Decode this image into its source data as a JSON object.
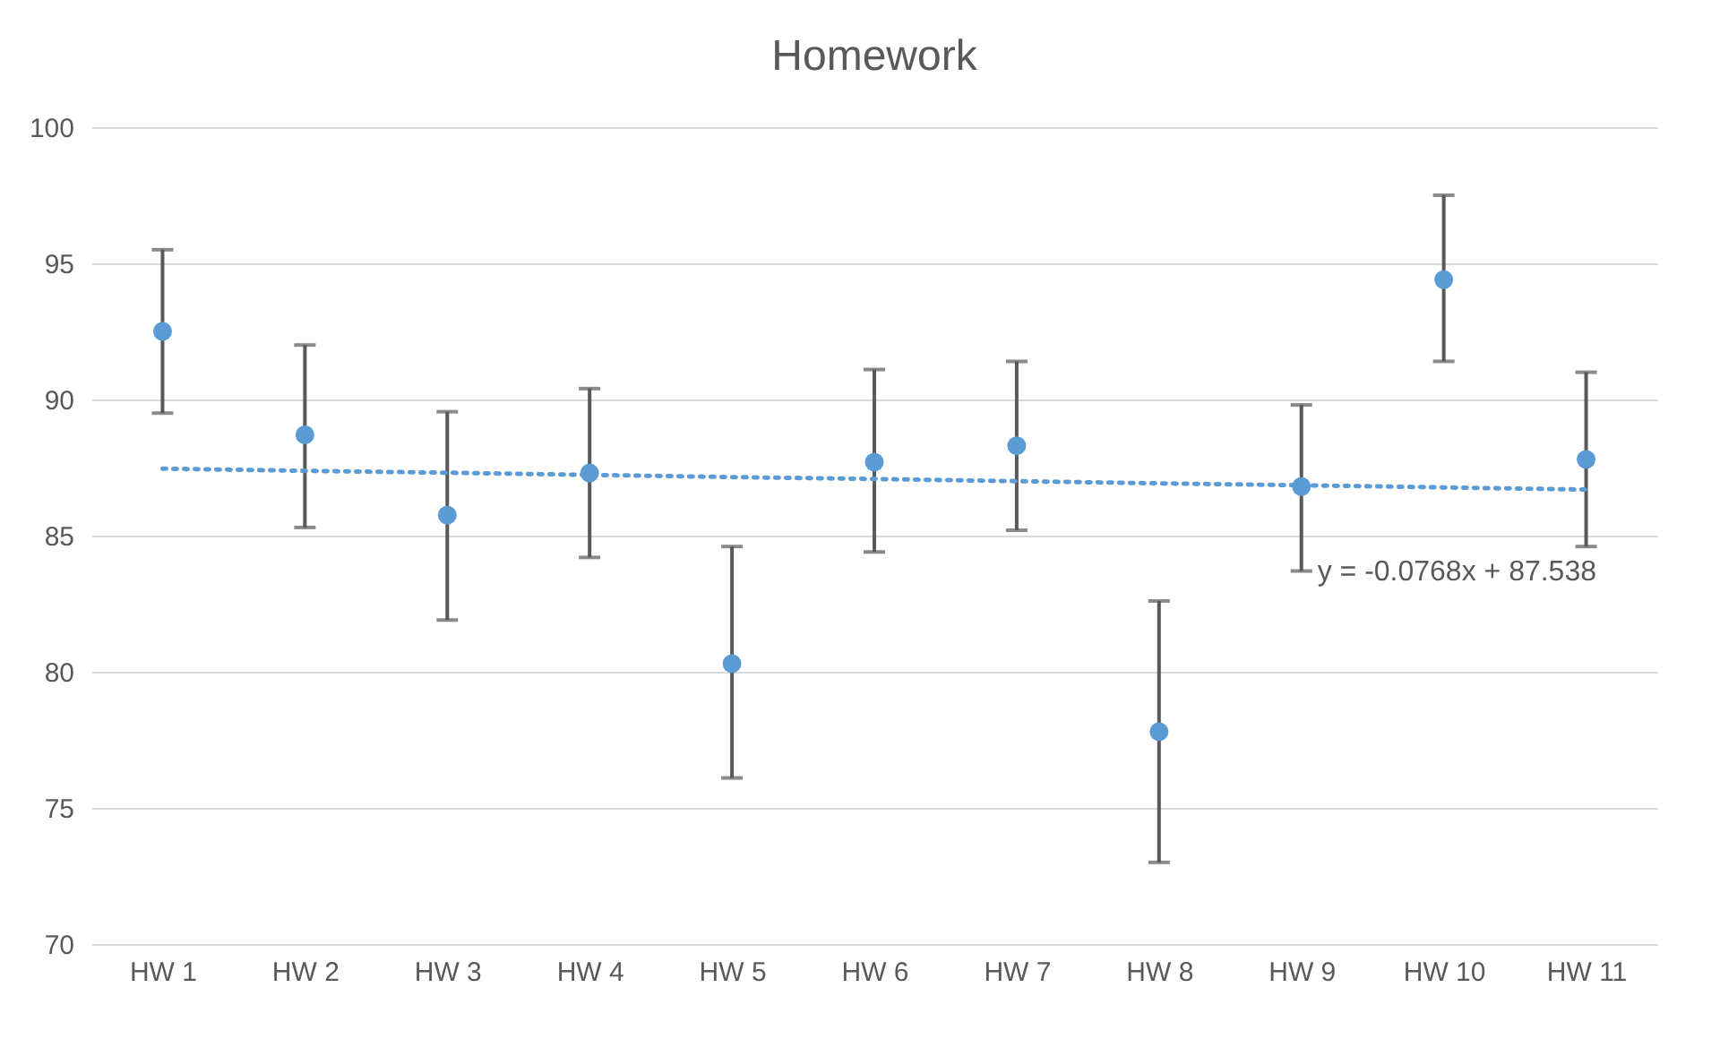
{
  "chart_data": {
    "type": "scatter",
    "title": "Homework",
    "categories": [
      "HW 1",
      "HW 2",
      "HW 3",
      "HW 4",
      "HW 5",
      "HW 6",
      "HW 7",
      "HW 8",
      "HW 9",
      "HW 10",
      "HW 11"
    ],
    "series": [
      {
        "color": "#5b9bd5",
        "marker": "circle",
        "values": [
          92.5,
          88.7,
          85.75,
          87.3,
          80.3,
          87.7,
          88.3,
          77.8,
          86.8,
          94.4,
          87.8
        ],
        "errors": [
          [
            89.5,
            95.5
          ],
          [
            85.3,
            92.0
          ],
          [
            81.9,
            89.55
          ],
          [
            84.2,
            90.4
          ],
          [
            76.1,
            84.6
          ],
          [
            84.4,
            91.1
          ],
          [
            85.2,
            91.4
          ],
          [
            73.0,
            82.6
          ],
          [
            83.7,
            89.8
          ],
          [
            91.4,
            97.5
          ],
          [
            84.6,
            91.0
          ]
        ]
      },
      {
        "type": "line",
        "color": "#5b9bd5",
        "line_style": "dotted",
        "values": [
          87.46,
          87.38,
          87.31,
          87.23,
          87.15,
          87.08,
          87.0,
          86.92,
          86.85,
          86.77,
          86.69
        ]
      }
    ],
    "annotations": [
      "y = -0.0768x + 87.538"
    ],
    "ylim": [
      70,
      100
    ],
    "yticks": [
      70,
      75,
      80,
      85,
      90,
      95,
      100
    ],
    "grid": "y"
  }
}
